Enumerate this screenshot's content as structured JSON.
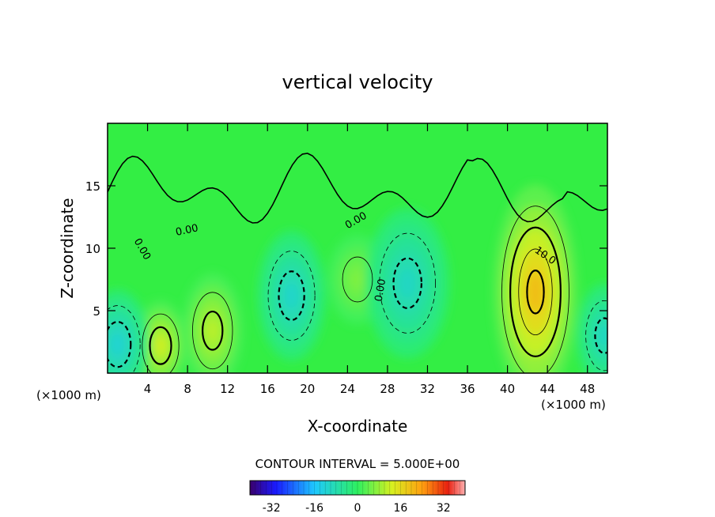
{
  "chart_data": {
    "type": "contour",
    "title": "vertical velocity",
    "xlabel": "X-coordinate",
    "ylabel": "Z-coordinate",
    "x_unit_label": "(×1000 m)",
    "z_unit_label": "(×1000 m)",
    "xlim": [
      0,
      50
    ],
    "ylim": [
      0,
      20
    ],
    "x_ticks": [
      4,
      8,
      12,
      16,
      20,
      24,
      28,
      32,
      36,
      40,
      44,
      48
    ],
    "y_ticks": [
      5,
      10,
      15
    ],
    "contour_interval_label": "CONTOUR INTERVAL = 5.000E+00",
    "contour_labels": [
      "0.00",
      "0.00",
      "0.00",
      "0.00",
      "10.0"
    ],
    "colorbar": {
      "ticks": [
        -32,
        -16,
        0,
        16,
        32
      ],
      "range": [
        -40,
        40
      ]
    },
    "extrema": [
      {
        "x": 42.8,
        "z": 6.5,
        "value": 22,
        "kind": "updraft"
      },
      {
        "x": 5.3,
        "z": 2.2,
        "value": 14,
        "kind": "updraft"
      },
      {
        "x": 10.5,
        "z": 3.4,
        "value": 12,
        "kind": "updraft"
      },
      {
        "x": 25.0,
        "z": 7.5,
        "value": 7,
        "kind": "updraft"
      },
      {
        "x": 1.0,
        "z": 2.3,
        "value": -14,
        "kind": "downdraft"
      },
      {
        "x": 18.4,
        "z": 6.2,
        "value": -13,
        "kind": "downdraft"
      },
      {
        "x": 30.0,
        "z": 7.2,
        "value": -12,
        "kind": "downdraft"
      },
      {
        "x": 49.7,
        "z": 3.0,
        "value": -12,
        "kind": "downdraft"
      }
    ]
  }
}
